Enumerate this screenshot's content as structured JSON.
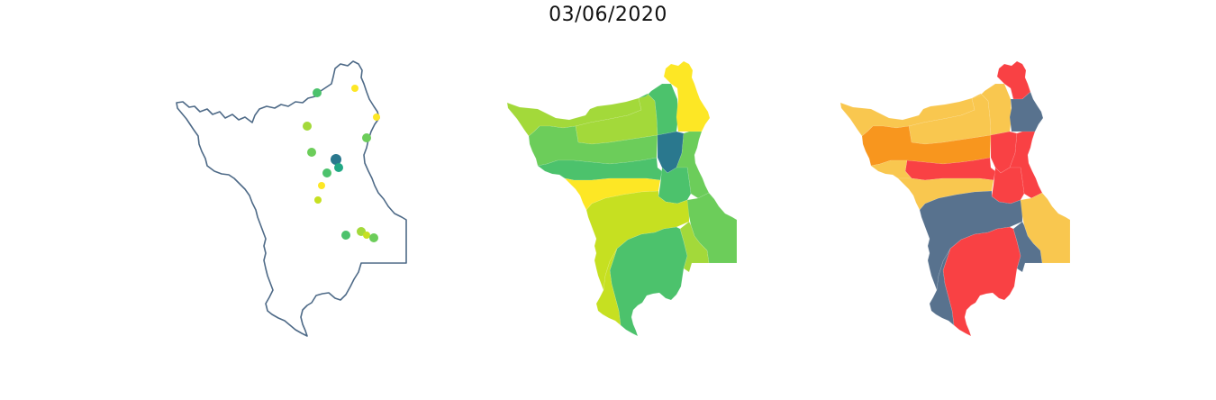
{
  "title": "03/06/2020",
  "colors": {
    "outline": "#4e6a87",
    "viridis_dark": "#2a788e",
    "viridis_teal": "#22a884",
    "viridis_green": "#4cc26c",
    "viridis_mid": "#6ccd5a",
    "viridis_lime": "#a3d93a",
    "viridis_ygreen": "#c6e021",
    "viridis_yellow": "#fde725",
    "risk_slate": "#58728e",
    "risk_red": "#f94144",
    "risk_orange": "#f8961e",
    "risk_gold": "#f9c74f"
  },
  "panels": [
    {
      "name": "stations-map"
    },
    {
      "name": "viridis-choropleth"
    },
    {
      "name": "risk-choropleth"
    }
  ]
}
